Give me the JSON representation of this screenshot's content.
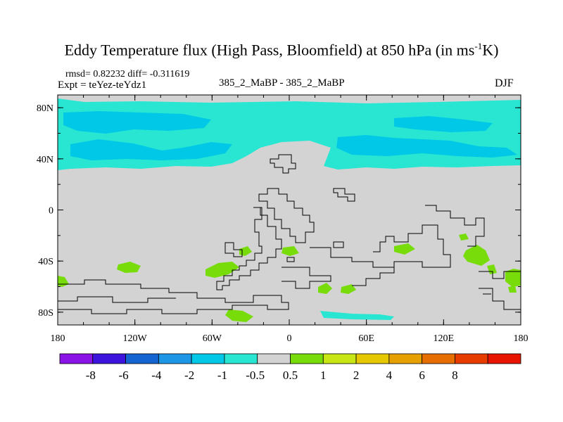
{
  "chart_data": {
    "type": "heatmap",
    "title_main": "Eddy Temperature flux (High Pass, Bloomfield) at 850 hPa (in ms",
    "title_sup": "-1",
    "title_end": "K)",
    "stats_text": "rmsd= 0.82232 diff= -0.311619",
    "expt_text": "Expt = teYez-teYdz1",
    "subtitle": "385_2_MaBP - 385_2_MaBP",
    "season": "DJF",
    "x_ticks": [
      {
        "lon": -180,
        "label": "180"
      },
      {
        "lon": -120,
        "label": "120W"
      },
      {
        "lon": -60,
        "label": "60W"
      },
      {
        "lon": 0,
        "label": "0"
      },
      {
        "lon": 60,
        "label": "60E"
      },
      {
        "lon": 120,
        "label": "120E"
      },
      {
        "lon": 180,
        "label": "180"
      }
    ],
    "y_ticks": [
      {
        "lat": 80,
        "label": "80N"
      },
      {
        "lat": 40,
        "label": "40N"
      },
      {
        "lat": 0,
        "label": "0"
      },
      {
        "lat": -40,
        "label": "40S"
      },
      {
        "lat": -80,
        "label": "80S"
      }
    ],
    "x_range": [
      -180,
      180
    ],
    "y_range": [
      -90,
      90
    ],
    "colorbar": {
      "colors": [
        "#8a14e6",
        "#3c14dc",
        "#1464d2",
        "#1e96e6",
        "#00c8e6",
        "#28e6d2",
        "#d3d3d3",
        "#78dc0a",
        "#c8e614",
        "#e6c800",
        "#e6a000",
        "#e66e00",
        "#e63c00",
        "#e61400"
      ],
      "labels": [
        "-8",
        "-6",
        "-4",
        "-2",
        "-1",
        "-0.5",
        "0.5",
        "1",
        "2",
        "4",
        "6",
        "8"
      ]
    },
    "colors": {
      "background": "#d3d3d3",
      "pos1": "#78dc0a",
      "neg_half": "#28e6d2",
      "neg1": "#00c8e6",
      "coast": "#000000"
    }
  }
}
